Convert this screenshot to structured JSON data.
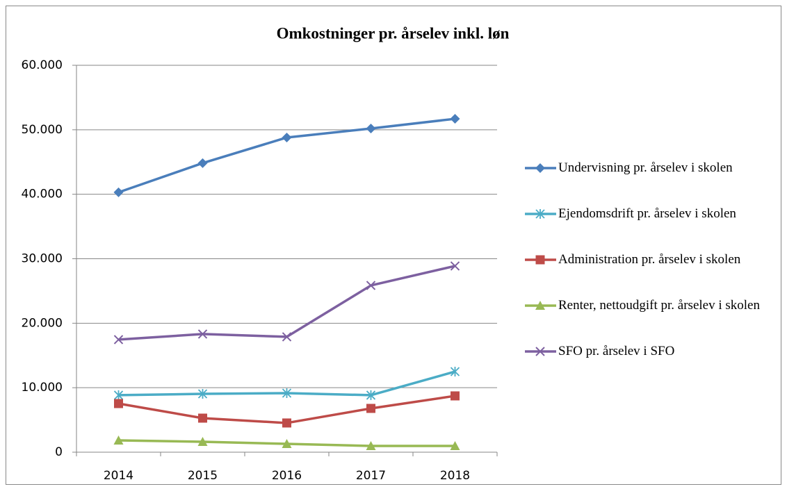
{
  "chart_data": {
    "type": "line",
    "title": "Omkostninger pr. årselev inkl. løn",
    "categories": [
      "2014",
      "2015",
      "2016",
      "2017",
      "2018"
    ],
    "series": [
      {
        "name": "Undervisning pr. årselev i skolen",
        "color": "#4a7ebb",
        "marker": "diamond",
        "values": [
          40300,
          44830,
          48800,
          50200,
          51700
        ]
      },
      {
        "name": "Ejendomsdrift pr. årselev i skolen",
        "color": "#4bacc6",
        "marker": "asterisk",
        "values": [
          8840,
          9050,
          9160,
          8840,
          12500
        ]
      },
      {
        "name": "Administration pr. årselev i skolen",
        "color": "#be4b48",
        "marker": "square",
        "values": [
          7540,
          5280,
          4530,
          6790,
          8730
        ]
      },
      {
        "name": "Renter, nettoudgift pr. årselev i skolen",
        "color": "#98b954",
        "marker": "triangle",
        "values": [
          1830,
          1620,
          1290,
          970,
          970
        ]
      },
      {
        "name": "SFO pr. årselev i SFO",
        "color": "#7d60a0",
        "marker": "x",
        "values": [
          17460,
          18320,
          17890,
          25860,
          28880
        ]
      }
    ],
    "ylim": [
      0,
      60000
    ],
    "yticks": [
      0,
      {
        "value": 10000,
        "label": "10.000"
      },
      {
        "value": 20000,
        "label": "20.000"
      },
      {
        "value": 30000,
        "label": "30.000"
      },
      {
        "value": 40000,
        "label": "40.000"
      },
      {
        "value": 50000,
        "label": "50.000"
      },
      {
        "value": 60000,
        "label": "60.000"
      }
    ],
    "grid": true,
    "legend": "right"
  }
}
